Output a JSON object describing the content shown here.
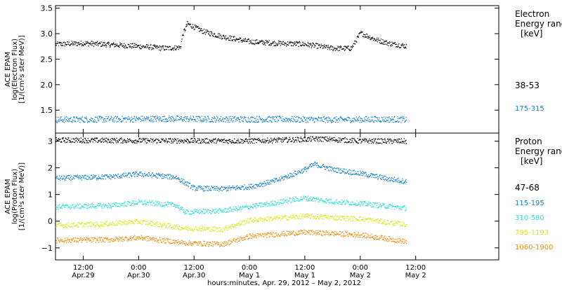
{
  "chart_data": [
    {
      "type": "scatter",
      "panel": "electron",
      "ylabel_lines": [
        "ACE EPAM",
        "log(Electron Flux)",
        "[1/(cm²s ster MeV)]"
      ],
      "ylim": [
        1.05,
        3.55
      ],
      "y_ticks": [
        {
          "value": 3.5,
          "label": "3.5"
        },
        {
          "value": 3.0,
          "label": "3.0"
        },
        {
          "value": 2.5,
          "label": "2.5"
        },
        {
          "value": 2.0,
          "label": "2.0"
        },
        {
          "value": 1.5,
          "label": "1.5"
        }
      ],
      "legend_title_lines": [
        "Electron",
        "Energy range",
        "[keV]"
      ],
      "series": [
        {
          "name": "38-53",
          "color": "#000000",
          "points": [
            [
              "2012-04-29T06:00",
              2.8
            ],
            [
              "2012-04-29T12:00",
              2.82
            ],
            [
              "2012-04-29T18:00",
              2.79
            ],
            [
              "2012-04-30T00:00",
              2.76
            ],
            [
              "2012-04-30T06:00",
              2.72
            ],
            [
              "2012-04-30T09:00",
              2.74
            ],
            [
              "2012-04-30T09:30",
              3.0
            ],
            [
              "2012-04-30T10:30",
              3.2
            ],
            [
              "2012-04-30T14:00",
              3.05
            ],
            [
              "2012-04-30T18:00",
              2.95
            ],
            [
              "2012-05-01T00:00",
              2.85
            ],
            [
              "2012-05-01T06:00",
              2.82
            ],
            [
              "2012-05-01T12:00",
              2.8
            ],
            [
              "2012-05-01T18:00",
              2.72
            ],
            [
              "2012-05-01T22:00",
              2.72
            ],
            [
              "2012-05-02T00:00",
              3.02
            ],
            [
              "2012-05-02T03:00",
              2.9
            ],
            [
              "2012-05-02T06:00",
              2.82
            ],
            [
              "2012-05-02T10:00",
              2.76
            ]
          ]
        },
        {
          "name": "175-315",
          "color": "#0f7fd1",
          "points": [
            [
              "2012-04-29T06:00",
              1.32
            ],
            [
              "2012-04-29T18:00",
              1.33
            ],
            [
              "2012-04-30T06:00",
              1.34
            ],
            [
              "2012-04-30T18:00",
              1.33
            ],
            [
              "2012-05-01T06:00",
              1.33
            ],
            [
              "2012-05-01T18:00",
              1.32
            ],
            [
              "2012-05-02T06:00",
              1.33
            ],
            [
              "2012-05-02T10:00",
              1.32
            ]
          ]
        }
      ]
    },
    {
      "type": "scatter",
      "panel": "proton",
      "ylabel_lines": [
        "ACE EPAM",
        "log(Proton Flux)",
        "[1/(cm²s ster MeV)]"
      ],
      "ylim": [
        -1.45,
        3.3
      ],
      "y_ticks": [
        {
          "value": 3,
          "label": "3"
        },
        {
          "value": 2,
          "label": "2"
        },
        {
          "value": 1,
          "label": "1"
        },
        {
          "value": 0,
          "label": "0"
        },
        {
          "value": -1,
          "label": "−1"
        }
      ],
      "legend_title_lines": [
        "Proton",
        "Energy range",
        "[keV]"
      ],
      "series": [
        {
          "name": "47-68",
          "color": "#000000",
          "points": [
            [
              "2012-04-29T06:00",
              3.05
            ],
            [
              "2012-04-30T06:00",
              3.03
            ],
            [
              "2012-05-01T00:00",
              3.02
            ],
            [
              "2012-05-01T12:00",
              3.08
            ],
            [
              "2012-05-01T15:00",
              3.1
            ],
            [
              "2012-05-02T00:00",
              3.02
            ],
            [
              "2012-05-02T10:00",
              3.01
            ]
          ]
        },
        {
          "name": "115-195",
          "color": "#0f7fd1",
          "points": [
            [
              "2012-04-29T06:00",
              1.62
            ],
            [
              "2012-04-29T18:00",
              1.68
            ],
            [
              "2012-04-30T00:00",
              1.78
            ],
            [
              "2012-04-30T08:00",
              1.66
            ],
            [
              "2012-04-30T10:00",
              1.45
            ],
            [
              "2012-04-30T12:00",
              1.25
            ],
            [
              "2012-04-30T18:00",
              1.22
            ],
            [
              "2012-05-01T00:00",
              1.3
            ],
            [
              "2012-05-01T06:00",
              1.55
            ],
            [
              "2012-05-01T12:00",
              1.95
            ],
            [
              "2012-05-01T14:00",
              2.15
            ],
            [
              "2012-05-01T16:00",
              2.05
            ],
            [
              "2012-05-01T18:00",
              1.95
            ],
            [
              "2012-05-02T00:00",
              1.8
            ],
            [
              "2012-05-02T06:00",
              1.6
            ],
            [
              "2012-05-02T10:00",
              1.5
            ]
          ]
        },
        {
          "name": "310-580",
          "color": "#29e0d5",
          "points": [
            [
              "2012-04-29T06:00",
              0.55
            ],
            [
              "2012-04-29T18:00",
              0.6
            ],
            [
              "2012-04-30T00:00",
              0.72
            ],
            [
              "2012-04-30T08:00",
              0.62
            ],
            [
              "2012-04-30T10:00",
              0.35
            ],
            [
              "2012-04-30T18:00",
              0.4
            ],
            [
              "2012-05-01T00:00",
              0.55
            ],
            [
              "2012-05-01T06:00",
              0.72
            ],
            [
              "2012-05-01T12:00",
              0.88
            ],
            [
              "2012-05-01T18:00",
              0.75
            ],
            [
              "2012-05-02T00:00",
              0.68
            ],
            [
              "2012-05-02T10:00",
              0.5
            ]
          ]
        },
        {
          "name": "795-1193",
          "color": "#d9e61a",
          "points": [
            [
              "2012-04-29T06:00",
              -0.15
            ],
            [
              "2012-04-29T18:00",
              -0.08
            ],
            [
              "2012-04-30T00:00",
              0.0
            ],
            [
              "2012-04-30T10:00",
              -0.25
            ],
            [
              "2012-04-30T18:00",
              -0.3
            ],
            [
              "2012-05-01T00:00",
              0.05
            ],
            [
              "2012-05-01T12:00",
              0.2
            ],
            [
              "2012-05-01T18:00",
              0.15
            ],
            [
              "2012-05-02T00:00",
              0.1
            ],
            [
              "2012-05-02T10:00",
              -0.12
            ]
          ]
        },
        {
          "name": "1060-1900",
          "color": "#f28c0e",
          "points": [
            [
              "2012-04-29T06:00",
              -0.7
            ],
            [
              "2012-04-29T18:00",
              -0.68
            ],
            [
              "2012-04-30T00:00",
              -0.6
            ],
            [
              "2012-04-30T10:00",
              -0.8
            ],
            [
              "2012-04-30T18:00",
              -0.85
            ],
            [
              "2012-05-01T00:00",
              -0.55
            ],
            [
              "2012-05-01T12:00",
              -0.4
            ],
            [
              "2012-05-01T18:00",
              -0.45
            ],
            [
              "2012-05-02T00:00",
              -0.5
            ],
            [
              "2012-05-02T10:00",
              -0.75
            ]
          ]
        }
      ]
    }
  ],
  "x_axis": {
    "start": "2012-04-29T06:00",
    "end": "2012-05-03T06:00",
    "ticks": [
      {
        "time": "2012-04-29T12:00",
        "line1": "12:00",
        "line2": "Apr.29"
      },
      {
        "time": "2012-04-30T00:00",
        "line1": "0:00",
        "line2": "Apr.30"
      },
      {
        "time": "2012-04-30T12:00",
        "line1": "12:00",
        "line2": "Apr.30"
      },
      {
        "time": "2012-05-01T00:00",
        "line1": "0:00",
        "line2": "May 1"
      },
      {
        "time": "2012-05-01T12:00",
        "line1": "12:00",
        "line2": "May 1"
      },
      {
        "time": "2012-05-02T00:00",
        "line1": "0:00",
        "line2": "May 2"
      },
      {
        "time": "2012-05-02T12:00",
        "line1": "12:00",
        "line2": "May 2"
      }
    ],
    "label": "hours:minutes, Apr. 29, 2012 – May  2, 2012"
  }
}
